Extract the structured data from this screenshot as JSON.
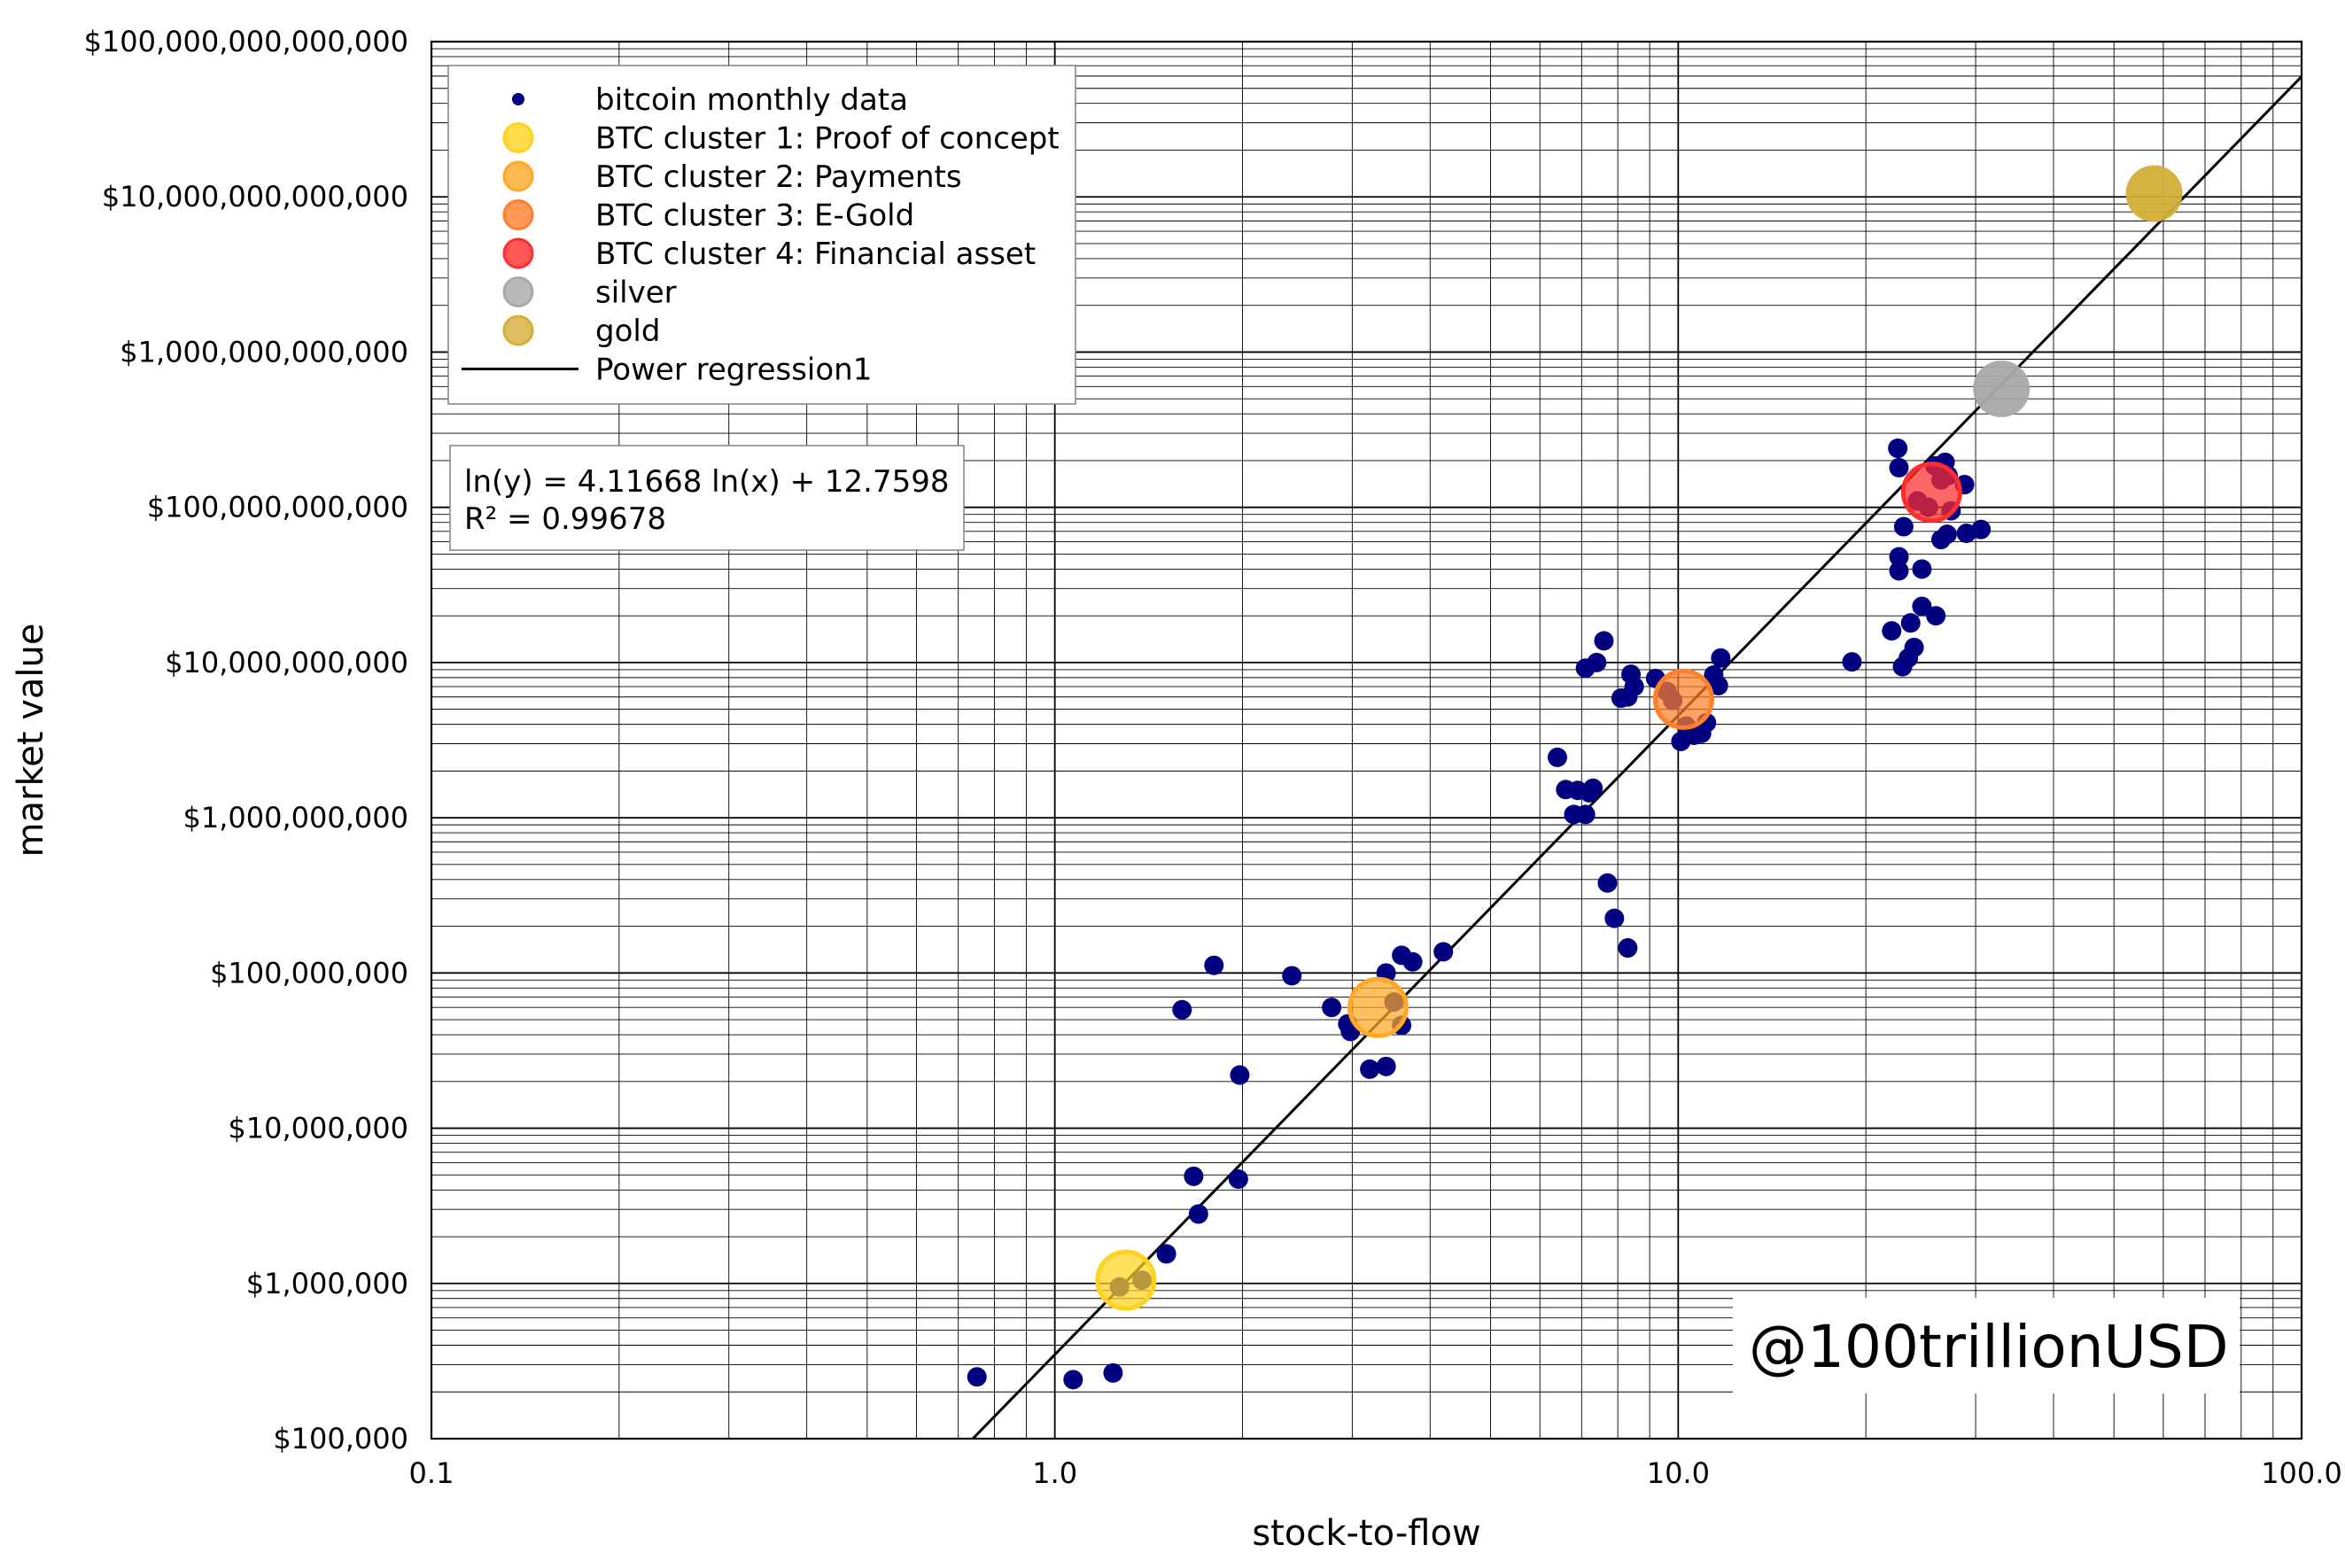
{
  "chart_data": {
    "type": "scatter",
    "xscale": "log",
    "yscale": "log",
    "xlim": [
      0.1,
      100.0
    ],
    "ylim": [
      100000,
      100000000000000
    ],
    "xlabel": "stock-to-flow",
    "ylabel": "market value",
    "grid": true,
    "x_ticks": [
      {
        "value": 0.1,
        "label": "0.1"
      },
      {
        "value": 1.0,
        "label": "1.0"
      },
      {
        "value": 10.0,
        "label": "10.0"
      },
      {
        "value": 100.0,
        "label": "100.0"
      }
    ],
    "y_ticks": [
      {
        "value": 100000,
        "label": "$100,000"
      },
      {
        "value": 1000000,
        "label": "$1,000,000"
      },
      {
        "value": 10000000,
        "label": "$10,000,000"
      },
      {
        "value": 100000000,
        "label": "$100,000,000"
      },
      {
        "value": 1000000000,
        "label": "$1,000,000,000"
      },
      {
        "value": 10000000000,
        "label": "$10,000,000,000"
      },
      {
        "value": 100000000000,
        "label": "$100,000,000,000"
      },
      {
        "value": 1000000000000,
        "label": "$1,000,000,000,000"
      },
      {
        "value": 10000000000000,
        "label": "$10,000,000,000,000"
      },
      {
        "value": 100000000000000,
        "label": "$100,000,000,000,000"
      }
    ],
    "legend": {
      "placement": "top-left",
      "entries": [
        {
          "label": "bitcoin monthly data",
          "marker": "dot-small",
          "color": "#000080"
        },
        {
          "label": "BTC cluster 1: Proof of concept",
          "marker": "circle",
          "color": "#ffd21f"
        },
        {
          "label": "BTC cluster 2: Payments",
          "marker": "circle",
          "color": "#ffa726"
        },
        {
          "label": "BTC cluster 3: E-Gold",
          "marker": "circle",
          "color": "#ff7f2a"
        },
        {
          "label": "BTC cluster 4: Financial asset",
          "marker": "circle",
          "color": "#ff2d2d"
        },
        {
          "label": "silver",
          "marker": "circle",
          "color": "#a9a9a9"
        },
        {
          "label": "gold",
          "marker": "circle",
          "color": "#d4af37"
        },
        {
          "label": "Power regression1",
          "marker": "line",
          "color": "#000000"
        }
      ]
    },
    "equation": {
      "line1": "ln(y) = 4.11668 ln(x) + 12.7598",
      "line2": "R² = 0.99678"
    },
    "regression": {
      "slope": 4.11668,
      "intercept": 12.7598
    },
    "watermark": "@100trillionUSD",
    "series": [
      {
        "name": "bitcoin monthly data",
        "color": "#000080",
        "points": [
          [
            0.75,
            250000
          ],
          [
            1.07,
            240000
          ],
          [
            1.24,
            265000
          ],
          [
            1.27,
            950000
          ],
          [
            1.38,
            1050000
          ],
          [
            1.51,
            1550000
          ],
          [
            1.7,
            2800000
          ],
          [
            1.67,
            4900000
          ],
          [
            1.97,
            4700000
          ],
          [
            1.98,
            22000000
          ],
          [
            1.6,
            58000000
          ],
          [
            1.8,
            112000000
          ],
          [
            2.4,
            96000000
          ],
          [
            2.78,
            60000000
          ],
          [
            2.95,
            47000000
          ],
          [
            2.98,
            42000000
          ],
          [
            3.2,
            24000000
          ],
          [
            3.4,
            25000000
          ],
          [
            3.4,
            100000000
          ],
          [
            3.6,
            130000000
          ],
          [
            3.75,
            118000000
          ],
          [
            4.2,
            137000000
          ],
          [
            3.5,
            65000000
          ],
          [
            3.6,
            46000000
          ],
          [
            6.4,
            2450000000
          ],
          [
            6.6,
            1520000000
          ],
          [
            6.8,
            1050000000
          ],
          [
            6.9,
            1500000000
          ],
          [
            7.1,
            1050000000
          ],
          [
            7.2,
            1450000000
          ],
          [
            7.3,
            1550000000
          ],
          [
            7.1,
            9200000000
          ],
          [
            7.4,
            10000000000
          ],
          [
            7.6,
            13800000000
          ],
          [
            7.7,
            380000000
          ],
          [
            7.9,
            225000000
          ],
          [
            8.3,
            145000000
          ],
          [
            8.1,
            5900000000
          ],
          [
            8.3,
            6000000000
          ],
          [
            8.4,
            8400000000
          ],
          [
            8.5,
            7000000000
          ],
          [
            9.2,
            7900000000
          ],
          [
            9.6,
            6500000000
          ],
          [
            9.8,
            5700000000
          ],
          [
            10.1,
            3100000000
          ],
          [
            10.3,
            3900000000
          ],
          [
            10.6,
            3400000000
          ],
          [
            10.9,
            3500000000
          ],
          [
            11.1,
            4100000000
          ],
          [
            11.4,
            8300000000
          ],
          [
            11.6,
            7100000000
          ],
          [
            11.7,
            10700000000
          ],
          [
            19.0,
            10100000000
          ],
          [
            22.0,
            16000000000
          ],
          [
            22.9,
            9400000000
          ],
          [
            23.4,
            10700000000
          ],
          [
            23.6,
            18000000000
          ],
          [
            23.9,
            12500000000
          ],
          [
            22.6,
            48000000000
          ],
          [
            22.6,
            39000000000
          ],
          [
            23.0,
            75000000000
          ],
          [
            24.6,
            40000000000
          ],
          [
            24.6,
            23000000000
          ],
          [
            25.9,
            20000000000
          ],
          [
            22.5,
            240000000000
          ],
          [
            22.6,
            180000000000
          ],
          [
            25.8,
            185000000000
          ],
          [
            26.4,
            150000000000
          ],
          [
            26.8,
            195000000000
          ],
          [
            27.1,
            160000000000
          ],
          [
            27.4,
            95000000000
          ],
          [
            28.8,
            140000000000
          ],
          [
            29.0,
            68000000000
          ],
          [
            30.6,
            72000000000
          ],
          [
            27.0,
            67000000000
          ],
          [
            26.4,
            62000000000
          ],
          [
            24.2,
            110000000000
          ],
          [
            25.2,
            100000000000
          ]
        ]
      },
      {
        "name": "BTC cluster 1: Proof of concept",
        "color": "#ffd21f",
        "points": [
          [
            1.3,
            1050000
          ]
        ]
      },
      {
        "name": "BTC cluster 2: Payments",
        "color": "#ffa726",
        "points": [
          [
            3.3,
            60000000
          ]
        ]
      },
      {
        "name": "BTC cluster 3: E-Gold",
        "color": "#ff7f2a",
        "points": [
          [
            10.2,
            5800000000
          ]
        ]
      },
      {
        "name": "BTC cluster 4: Financial asset",
        "color": "#ff2d2d",
        "points": [
          [
            25.5,
            125000000000
          ]
        ]
      },
      {
        "name": "silver",
        "color": "#a9a9a9",
        "points": [
          [
            33.0,
            580000000000
          ]
        ]
      },
      {
        "name": "gold",
        "color": "#d4af37",
        "points": [
          [
            58.0,
            10500000000000
          ]
        ]
      }
    ]
  }
}
